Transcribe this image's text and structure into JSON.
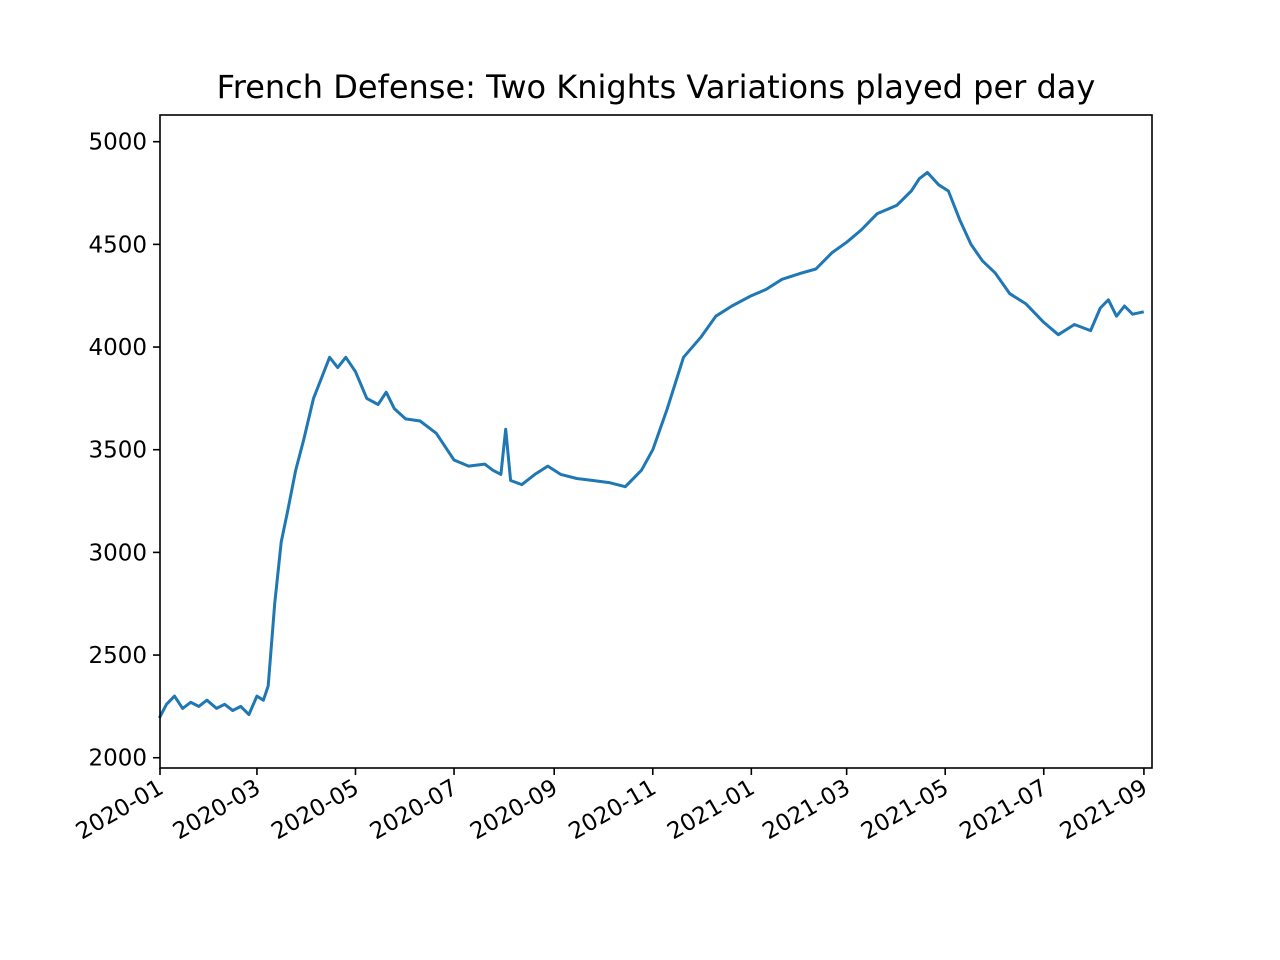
{
  "chart_data": {
    "type": "line",
    "title": "French Defense: Two Knights Variations played per day",
    "xlabel": "",
    "ylabel": "",
    "x_range": [
      "2020-01-01",
      "2021-09-06"
    ],
    "ylim": [
      1950,
      5130
    ],
    "x_tick_labels": [
      "2020-01",
      "2020-03",
      "2020-05",
      "2020-07",
      "2020-09",
      "2020-11",
      "2021-01",
      "2021-03",
      "2021-05",
      "2021-07",
      "2021-09"
    ],
    "y_tick_labels": [
      "2000",
      "2500",
      "3000",
      "3500",
      "4000",
      "4500",
      "5000"
    ],
    "grid": false,
    "legend": "none",
    "color": "#1f77b4",
    "series": [
      {
        "x": [
          "2020-01-01",
          "2020-01-05",
          "2020-01-10",
          "2020-01-15",
          "2020-01-20",
          "2020-01-25",
          "2020-01-30",
          "2020-02-05",
          "2020-02-10",
          "2020-02-15",
          "2020-02-20",
          "2020-02-25",
          "2020-03-01",
          "2020-03-05",
          "2020-03-08",
          "2020-03-12",
          "2020-03-16",
          "2020-03-20",
          "2020-03-25",
          "2020-03-30",
          "2020-04-05",
          "2020-04-10",
          "2020-04-15",
          "2020-04-20",
          "2020-04-25",
          "2020-05-01",
          "2020-05-08",
          "2020-05-15",
          "2020-05-20",
          "2020-05-25",
          "2020-06-01",
          "2020-06-10",
          "2020-06-20",
          "2020-07-01",
          "2020-07-10",
          "2020-07-20",
          "2020-07-25",
          "2020-07-30",
          "2020-08-02",
          "2020-08-05",
          "2020-08-12",
          "2020-08-20",
          "2020-08-28",
          "2020-09-05",
          "2020-09-15",
          "2020-09-25",
          "2020-10-05",
          "2020-10-15",
          "2020-10-25",
          "2020-11-01",
          "2020-11-10",
          "2020-11-20",
          "2020-12-01",
          "2020-12-10",
          "2020-12-20",
          "2021-01-01",
          "2021-01-10",
          "2021-01-20",
          "2021-02-01",
          "2021-02-10",
          "2021-02-20",
          "2021-03-01",
          "2021-03-10",
          "2021-03-20",
          "2021-04-01",
          "2021-04-10",
          "2021-04-15",
          "2021-04-20",
          "2021-04-27",
          "2021-05-03",
          "2021-05-10",
          "2021-05-17",
          "2021-05-24",
          "2021-06-01",
          "2021-06-10",
          "2021-06-20",
          "2021-07-01",
          "2021-07-10",
          "2021-07-20",
          "2021-07-30",
          "2021-08-05",
          "2021-08-10",
          "2021-08-15",
          "2021-08-20",
          "2021-08-25",
          "2021-08-31"
        ],
        "y": [
          2200,
          2260,
          2300,
          2240,
          2270,
          2250,
          2280,
          2240,
          2260,
          2230,
          2250,
          2210,
          2300,
          2280,
          2350,
          2750,
          3050,
          3200,
          3400,
          3550,
          3750,
          3850,
          3950,
          3900,
          3950,
          3880,
          3750,
          3720,
          3780,
          3700,
          3650,
          3640,
          3580,
          3450,
          3420,
          3430,
          3400,
          3380,
          3600,
          3350,
          3330,
          3380,
          3420,
          3380,
          3360,
          3350,
          3340,
          3320,
          3400,
          3500,
          3700,
          3950,
          4050,
          4150,
          4200,
          4250,
          4280,
          4330,
          4360,
          4380,
          4460,
          4510,
          4570,
          4650,
          4690,
          4760,
          4820,
          4850,
          4790,
          4760,
          4620,
          4500,
          4420,
          4360,
          4260,
          4210,
          4120,
          4060,
          4110,
          4080,
          4190,
          4230,
          4150,
          4200,
          4160,
          4170
        ]
      }
    ]
  }
}
